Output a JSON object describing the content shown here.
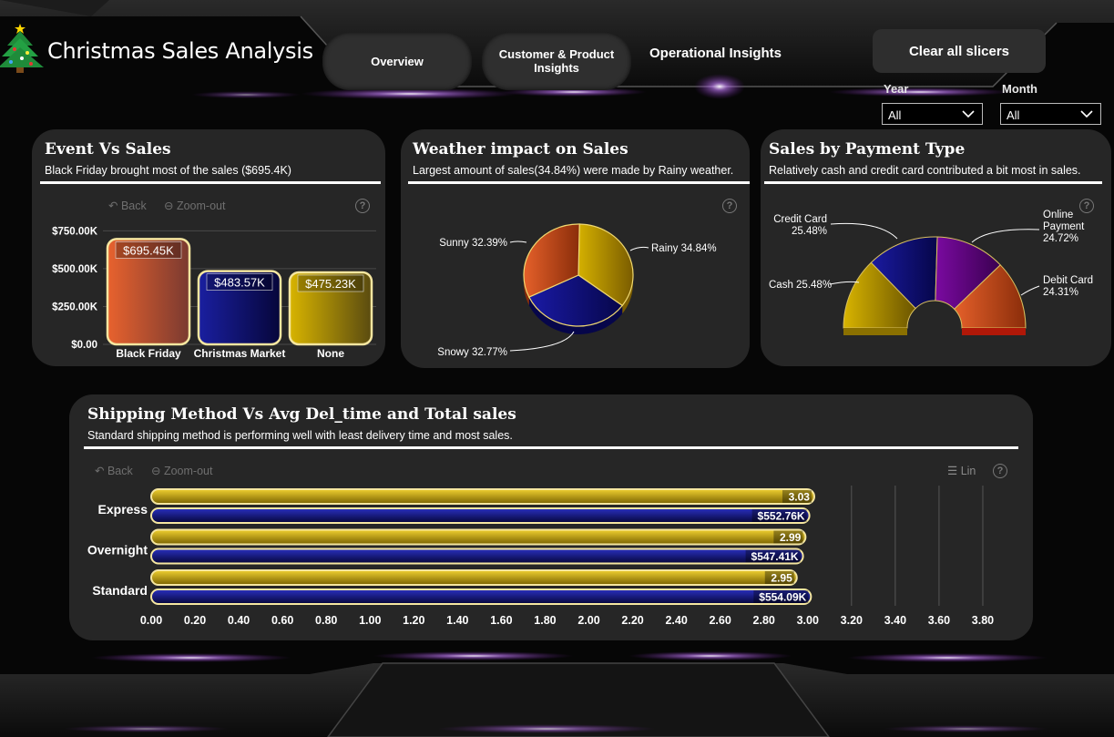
{
  "header": {
    "title": "Christmas Sales Analysis",
    "nav": {
      "overview": "Overview",
      "customer_product": "Customer & Product Insights",
      "operational": "Operational Insights"
    },
    "clear_label": "Clear all slicers",
    "slicers": [
      {
        "label": "Year",
        "value": "All"
      },
      {
        "label": "Month",
        "value": "All"
      }
    ]
  },
  "toolbar": {
    "back": "Back",
    "zoom_out": "Zoom-out",
    "help": "?",
    "lin": "Lin"
  },
  "cards": {
    "event": {
      "title": "Event Vs Sales",
      "subtitle": "Black Friday brought most of the sales ($695.4K)"
    },
    "weather": {
      "title": "Weather impact on Sales",
      "subtitle": "Largest amount of sales(34.84%) were  made by Rainy weather."
    },
    "payment": {
      "title": "Sales by Payment Type",
      "subtitle": "Relatively cash and credit card contributed a bit most in sales."
    },
    "shipping": {
      "title": "Shipping Method Vs Avg Del_time and Total sales",
      "subtitle": "Standard shipping method is performing  well with least delivery time  and most sales."
    }
  },
  "chart_data": [
    {
      "id": "event",
      "type": "bar",
      "categories": [
        "Black Friday",
        "Christmas Market",
        "None"
      ],
      "values": [
        695.45,
        483.57,
        475.23
      ],
      "value_labels": [
        "$695.45K",
        "$483.57K",
        "$475.23K"
      ],
      "yticks": [
        0,
        250,
        500,
        750
      ],
      "ytick_labels": [
        "$0.00",
        "$250.00K",
        "$500.00K",
        "$750.00K"
      ],
      "ylim": [
        0,
        800
      ],
      "colors": [
        "#e8622e",
        "#1a1fa0",
        "#d8b400"
      ]
    },
    {
      "id": "weather",
      "type": "pie",
      "slices": [
        {
          "name": "Rainy",
          "value": 34.84,
          "label": "Rainy 34.84%",
          "color": "#d4b000"
        },
        {
          "name": "Snowy",
          "value": 32.77,
          "label": "Snowy 32.77%",
          "color": "#1a1aa5"
        },
        {
          "name": "Sunny",
          "value": 32.39,
          "label": "Sunny 32.39%",
          "color": "#e5602a"
        }
      ]
    },
    {
      "id": "payment",
      "type": "pie",
      "style": "half-donut",
      "slices": [
        {
          "name": "Cash",
          "value": 25.48,
          "label_name": "Cash",
          "label_pct": "25.48%",
          "color": "#d8b400"
        },
        {
          "name": "Credit Card",
          "value": 25.48,
          "label_name": "Credit Card",
          "label_pct": "25.48%",
          "color": "#1a1aa0"
        },
        {
          "name": "Online Payment",
          "value": 24.72,
          "label_name": "Online Payment",
          "label_pct": "24.72%",
          "color": "#7a0aa0"
        },
        {
          "name": "Debit Card",
          "value": 24.31,
          "label_name": "Debit Card",
          "label_pct": "24.31%",
          "color": "#e5602a"
        }
      ]
    },
    {
      "id": "shipping",
      "type": "bar",
      "orientation": "horizontal",
      "categories": [
        "Express",
        "Overnight",
        "Standard"
      ],
      "series": [
        {
          "values": [
            3.03,
            2.99,
            2.95
          ],
          "value_labels": [
            "3.03",
            "2.99",
            "2.95"
          ],
          "color": "#d8b400"
        },
        {
          "values": [
            552.76,
            547.41,
            554.09
          ],
          "value_labels": [
            "$552.76K",
            "$547.41K",
            "$554.09K"
          ],
          "color": "#1a1fa0"
        }
      ],
      "xticks": [
        0,
        0.2,
        0.4,
        0.6,
        0.8,
        1.0,
        1.2,
        1.4,
        1.6,
        1.8,
        2.0,
        2.2,
        2.4,
        2.6,
        2.8,
        3.0,
        3.2,
        3.4,
        3.6,
        3.8
      ],
      "xtick_labels": [
        "0.00",
        "0.20",
        "0.40",
        "0.60",
        "0.80",
        "1.00",
        "1.20",
        "1.40",
        "1.60",
        "1.80",
        "2.00",
        "2.20",
        "2.40",
        "2.60",
        "2.80",
        "3.00",
        "3.20",
        "3.40",
        "3.60",
        "3.80"
      ],
      "xlim": [
        0,
        3.9
      ]
    }
  ]
}
